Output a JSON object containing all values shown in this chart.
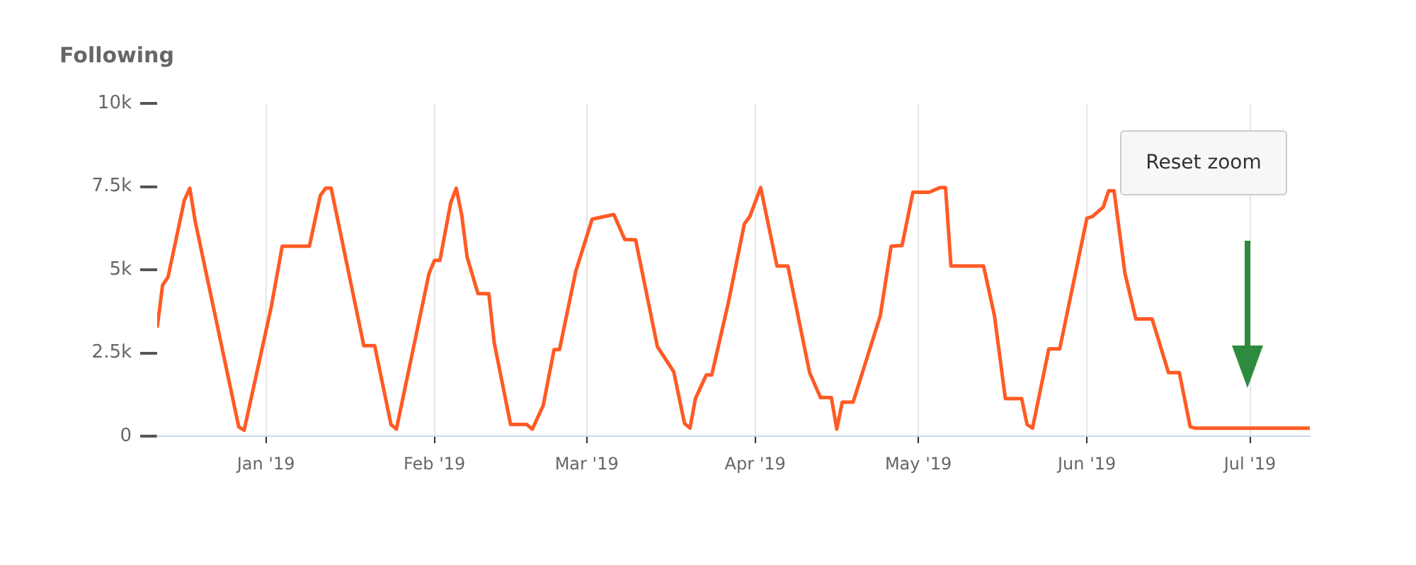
{
  "chart_data": {
    "type": "line",
    "title": "Following",
    "annotations": [
      "Reset zoom"
    ],
    "xlim": [
      "2018-12-12",
      "2019-07-12"
    ],
    "xticks": [
      {
        "value": "2019-01-01",
        "label": "Jan '19"
      },
      {
        "value": "2019-02-01",
        "label": "Feb '19"
      },
      {
        "value": "2019-03-01",
        "label": "Mar '19"
      },
      {
        "value": "2019-04-01",
        "label": "Apr '19"
      },
      {
        "value": "2019-05-01",
        "label": "May '19"
      },
      {
        "value": "2019-06-01",
        "label": "Jun '19"
      },
      {
        "value": "2019-07-01",
        "label": "Jul '19"
      }
    ],
    "ylim": [
      0,
      10000
    ],
    "yticks": [
      {
        "value": 0,
        "label": "0"
      },
      {
        "value": 2500,
        "label": "2.5k"
      },
      {
        "value": 5000,
        "label": "5k"
      },
      {
        "value": 7500,
        "label": "7.5k"
      },
      {
        "value": 10000,
        "label": "10k"
      }
    ],
    "grid": "x",
    "legend": false,
    "x": [
      "2018-12-12",
      "2018-12-13",
      "2018-12-14",
      "2018-12-17",
      "2018-12-18",
      "2018-12-19",
      "2018-12-27",
      "2018-12-28",
      "2019-01-02",
      "2019-01-04",
      "2019-01-09",
      "2019-01-11",
      "2019-01-12",
      "2019-01-13",
      "2019-01-19",
      "2019-01-21",
      "2019-01-24",
      "2019-01-25",
      "2019-01-31",
      "2019-02-01",
      "2019-02-02",
      "2019-02-04",
      "2019-02-05",
      "2019-02-06",
      "2019-02-07",
      "2019-02-09",
      "2019-02-11",
      "2019-02-12",
      "2019-02-15",
      "2019-02-18",
      "2019-02-19",
      "2019-02-21",
      "2019-02-23",
      "2019-02-24",
      "2019-02-27",
      "2019-03-02",
      "2019-03-06",
      "2019-03-08",
      "2019-03-10",
      "2019-03-14",
      "2019-03-17",
      "2019-03-19",
      "2019-03-20",
      "2019-03-21",
      "2019-03-23",
      "2019-03-24",
      "2019-03-27",
      "2019-03-30",
      "2019-03-31",
      "2019-04-02",
      "2019-04-05",
      "2019-04-07",
      "2019-04-11",
      "2019-04-13",
      "2019-04-15",
      "2019-04-16",
      "2019-04-17",
      "2019-04-19",
      "2019-04-24",
      "2019-04-26",
      "2019-04-28",
      "2019-04-30",
      "2019-05-03",
      "2019-05-05",
      "2019-05-06",
      "2019-05-07",
      "2019-05-13",
      "2019-05-15",
      "2019-05-17",
      "2019-05-20",
      "2019-05-21",
      "2019-05-22",
      "2019-05-25",
      "2019-05-27",
      "2019-06-01",
      "2019-06-02",
      "2019-06-04",
      "2019-06-05",
      "2019-06-06",
      "2019-06-08",
      "2019-06-10",
      "2019-06-13",
      "2019-06-16",
      "2019-06-18",
      "2019-06-20",
      "2019-06-21",
      "2019-07-12"
    ],
    "series": [
      {
        "color": "#ff5a24",
        "values": [
          3260,
          4540,
          4780,
          7090,
          7450,
          6450,
          280,
          180,
          3900,
          5710,
          5710,
          7230,
          7450,
          7450,
          2720,
          2720,
          350,
          210,
          4890,
          5280,
          5280,
          7020,
          7450,
          6660,
          5390,
          4280,
          4280,
          2800,
          350,
          350,
          210,
          920,
          2600,
          2600,
          4960,
          6520,
          6660,
          5910,
          5900,
          2690,
          1940,
          380,
          240,
          1130,
          1840,
          1840,
          3970,
          6380,
          6600,
          7470,
          5110,
          5110,
          1910,
          1160,
          1160,
          210,
          1020,
          1020,
          3620,
          5710,
          5730,
          7330,
          7330,
          7470,
          7470,
          5110,
          5110,
          3620,
          1130,
          1130,
          350,
          240,
          2620,
          2620,
          6550,
          6600,
          6880,
          7370,
          7370,
          4890,
          3520,
          3520,
          1910,
          1910,
          280,
          240,
          240
        ]
      }
    ]
  }
}
